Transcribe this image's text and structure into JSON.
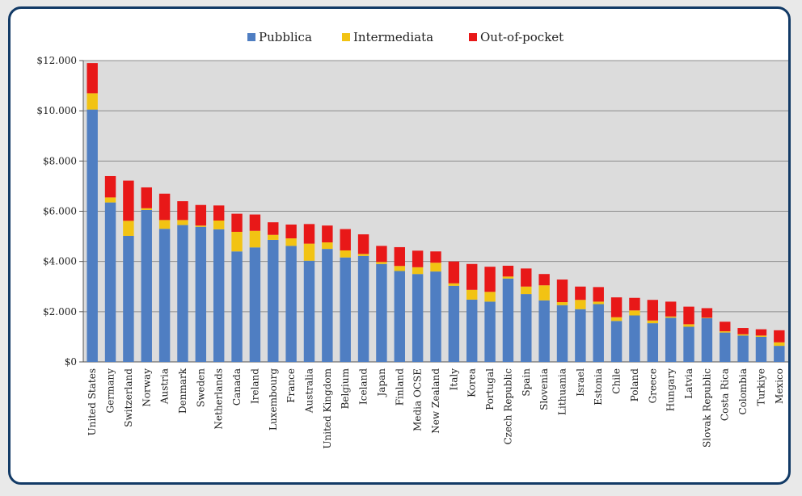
{
  "chart_data": {
    "type": "bar",
    "stacked": true,
    "categories": [
      "United States",
      "Germany",
      "Switzerland",
      "Norway",
      "Austria",
      "Denmark",
      "Sweden",
      "Netherlands",
      "Canada",
      "Ireland",
      "Luxembourg",
      "France",
      "Australia",
      "United Kingdom",
      "Belgium",
      "Iceland",
      "Japan",
      "Finland",
      "Media OCSE",
      "New Zealand",
      "Italy",
      "Korea",
      "Portugal",
      "Czech Republic",
      "Spain",
      "Slovenia",
      "Lithuania",
      "Israel",
      "Estonia",
      "Chile",
      "Poland",
      "Greece",
      "Hungary",
      "Latvia",
      "Slovak Republic",
      "Costa Rica",
      "Colombia",
      "Turkiye",
      "Mexico"
    ],
    "series": [
      {
        "name": "Pubblica",
        "color": "#4f7ec2",
        "values": [
          10050,
          6350,
          5020,
          6050,
          5300,
          5450,
          5380,
          5280,
          4400,
          4560,
          4860,
          4620,
          4030,
          4500,
          4160,
          4220,
          3900,
          3620,
          3500,
          3600,
          3030,
          2480,
          2400,
          3320,
          2700,
          2450,
          2260,
          2100,
          2300,
          1630,
          1850,
          1540,
          1760,
          1400,
          1740,
          1170,
          1050,
          1000,
          640
        ]
      },
      {
        "name": "Intermediata",
        "color": "#f2c313",
        "values": [
          650,
          200,
          600,
          70,
          350,
          200,
          50,
          350,
          780,
          660,
          200,
          300,
          680,
          260,
          280,
          80,
          80,
          200,
          270,
          350,
          100,
          390,
          390,
          80,
          300,
          600,
          120,
          370,
          100,
          150,
          200,
          110,
          50,
          100,
          20,
          50,
          50,
          50,
          140
        ]
      },
      {
        "name": "Out-of-pocket",
        "color": "#e81818",
        "values": [
          1200,
          850,
          1600,
          830,
          1050,
          750,
          820,
          600,
          720,
          650,
          500,
          550,
          780,
          670,
          850,
          780,
          640,
          750,
          660,
          450,
          870,
          1030,
          1000,
          430,
          720,
          450,
          900,
          530,
          580,
          790,
          500,
          820,
          590,
          700,
          380,
          380,
          250,
          250,
          480
        ]
      }
    ],
    "y_ticks": [
      "$0",
      "$2.000",
      "$4.000",
      "$6.000",
      "$8.000",
      "$10.000",
      "$12.000"
    ],
    "ylim": [
      0,
      12000
    ],
    "grid": true,
    "legend_position": "top"
  }
}
